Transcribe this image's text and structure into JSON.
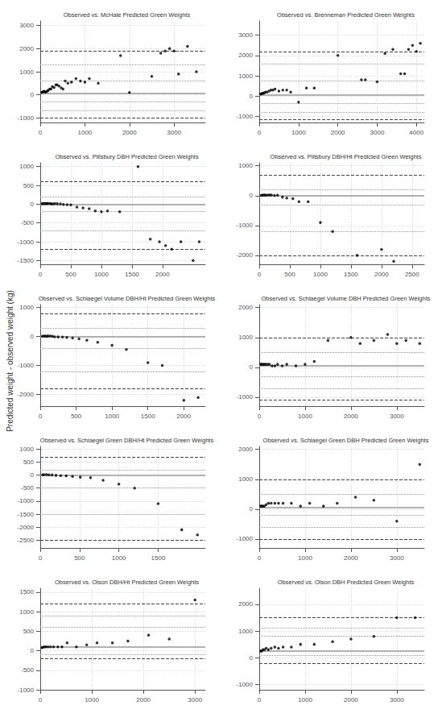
{
  "chart_data": [
    {
      "type": "scatter",
      "title": "Observed vs. McHale Predicted Green Weights",
      "color": "#000000",
      "grid": true,
      "xlim": [
        0,
        3700
      ],
      "ylim": [
        -1200,
        3200
      ],
      "xticks": [
        0,
        1000,
        2000,
        3000
      ],
      "yticks": [
        -1000,
        0,
        1000,
        2000,
        3000
      ],
      "mean_line": 50,
      "upper_dash": 1900,
      "lower_dash": -1000,
      "hlines_dot": [
        600,
        1300,
        -300,
        -700
      ],
      "x": [
        30,
        50,
        70,
        90,
        110,
        130,
        160,
        180,
        210,
        240,
        270,
        310,
        350,
        380,
        420,
        470,
        510,
        560,
        620,
        700,
        800,
        900,
        1000,
        1100,
        1300,
        1800,
        2000,
        2500,
        2700,
        2800,
        2900,
        3000,
        3100,
        3300,
        3500
      ],
      "values": [
        100,
        120,
        140,
        150,
        120,
        130,
        160,
        200,
        250,
        250,
        350,
        320,
        430,
        430,
        380,
        300,
        250,
        600,
        500,
        550,
        700,
        600,
        550,
        700,
        500,
        1700,
        100,
        800,
        1800,
        1900,
        2000,
        1900,
        900,
        2100,
        1000
      ]
    },
    {
      "type": "scatter",
      "title": "Observed vs. Brenneman Predicted Green Weights",
      "color": "#000000",
      "grid": true,
      "xlim": [
        0,
        4200
      ],
      "ylim": [
        -1300,
        3700
      ],
      "xticks": [
        0,
        1000,
        2000,
        3000,
        4000
      ],
      "yticks": [
        -1000,
        0,
        1000,
        2000,
        3000
      ],
      "mean_line": 50,
      "upper_dash": 2200,
      "lower_dash": -1150,
      "hlines_dot": [
        750,
        1600,
        -350,
        -800
      ],
      "x": [
        30,
        60,
        80,
        100,
        130,
        160,
        200,
        250,
        300,
        350,
        400,
        500,
        600,
        700,
        800,
        1000,
        1200,
        1400,
        2000,
        2600,
        2700,
        3000,
        3200,
        3400,
        3600,
        3700,
        3800,
        3900,
        4000,
        4100
      ],
      "values": [
        100,
        120,
        130,
        150,
        160,
        200,
        200,
        250,
        300,
        300,
        350,
        250,
        300,
        300,
        200,
        -300,
        400,
        400,
        2000,
        800,
        800,
        700,
        2100,
        2300,
        1100,
        1100,
        2300,
        2500,
        2200,
        2600
      ]
    },
    {
      "type": "scatter",
      "title": "Observed vs. Pillsbury DBH Predicted Green Weights",
      "color": "#000000",
      "grid": true,
      "xlim": [
        0,
        2700
      ],
      "ylim": [
        -1600,
        1100
      ],
      "xticks": [
        0,
        500,
        1000,
        1500,
        2000
      ],
      "yticks": [
        -1500,
        -1000,
        -500,
        0,
        500,
        1000
      ],
      "mean_line": 0,
      "upper_dash": 600,
      "lower_dash": -1200,
      "hlines_dot": [
        200,
        -200,
        -700
      ],
      "x": [
        30,
        50,
        70,
        90,
        110,
        130,
        160,
        180,
        210,
        240,
        280,
        330,
        380,
        440,
        500,
        600,
        700,
        800,
        900,
        1000,
        1100,
        1300,
        1600,
        1800,
        1950,
        2050,
        2150,
        2300,
        2500,
        2600
      ],
      "values": [
        10,
        20,
        15,
        20,
        15,
        20,
        20,
        10,
        5,
        20,
        10,
        5,
        -10,
        -15,
        -20,
        -80,
        -100,
        -120,
        -180,
        -200,
        -180,
        -200,
        1000,
        -930,
        -1000,
        -1100,
        -1200,
        -1000,
        -1500,
        -1000
      ]
    },
    {
      "type": "scatter",
      "title": "Observed vs. Pillsbury DBH/Ht Predicted Green Weights",
      "color": "#000000",
      "grid": true,
      "xlim": [
        0,
        2700
      ],
      "ylim": [
        -2300,
        1100
      ],
      "xticks": [
        0,
        500,
        1000,
        1500,
        2000,
        2500
      ],
      "yticks": [
        -2000,
        -1000,
        0,
        1000
      ],
      "mean_line": 0,
      "upper_dash": 700,
      "lower_dash": -2000,
      "hlines_dot": [
        200,
        -300,
        -1200
      ],
      "x": [
        30,
        50,
        70,
        90,
        110,
        140,
        170,
        200,
        250,
        300,
        380,
        450,
        550,
        650,
        800,
        1000,
        1200,
        1600,
        2000,
        2200
      ],
      "values": [
        10,
        15,
        20,
        20,
        15,
        20,
        20,
        20,
        10,
        15,
        -50,
        -80,
        -100,
        -200,
        -200,
        -900,
        -1200,
        -2000,
        -1800,
        -2200
      ]
    },
    {
      "type": "scatter",
      "title": "Observed vs. Schlaegel Volume DBH/Ht Predicted Green Weights",
      "color": "#000000",
      "grid": true,
      "xlim": [
        0,
        2300
      ],
      "ylim": [
        -2400,
        1100
      ],
      "xticks": [
        0,
        500,
        1000,
        1500,
        2000
      ],
      "yticks": [
        -2000,
        -1000,
        0,
        1000
      ],
      "mean_line": 0,
      "upper_dash": 800,
      "lower_dash": -1800,
      "hlines_dot": [
        300,
        -400,
        -1200
      ],
      "x": [
        30,
        50,
        70,
        90,
        110,
        140,
        170,
        200,
        250,
        310,
        370,
        450,
        540,
        650,
        800,
        1000,
        1200,
        1500,
        1700,
        2000,
        2200
      ],
      "values": [
        10,
        15,
        15,
        10,
        20,
        15,
        10,
        -10,
        -15,
        -20,
        -30,
        -50,
        -80,
        -130,
        -200,
        -300,
        -450,
        -900,
        -1000,
        -2200,
        -2100
      ]
    },
    {
      "type": "scatter",
      "title": "Observed vs. Schlaegel Volume DBH Predicted Green Weights",
      "color": "#000000",
      "grid": true,
      "xlim": [
        0,
        3600
      ],
      "ylim": [
        -1300,
        2100
      ],
      "xticks": [
        0,
        1000,
        2000,
        3000
      ],
      "yticks": [
        -1000,
        0,
        1000,
        2000
      ],
      "mean_line": 50,
      "upper_dash": 1000,
      "lower_dash": -1100,
      "hlines_dot": [
        500,
        -300,
        -700
      ],
      "x": [
        30,
        50,
        80,
        110,
        140,
        180,
        220,
        280,
        340,
        400,
        500,
        600,
        800,
        1000,
        1200,
        1500,
        2000,
        2200,
        2500,
        2800,
        3000,
        3200,
        3500
      ],
      "values": [
        100,
        100,
        100,
        100,
        100,
        100,
        100,
        50,
        50,
        100,
        50,
        100,
        50,
        100,
        200,
        900,
        1000,
        800,
        900,
        1100,
        800,
        900,
        800
      ]
    },
    {
      "type": "scatter",
      "title": "Observed vs. Schlaegel Green DBH/Ht Predicted Green Weights",
      "color": "#000000",
      "grid": true,
      "xlim": [
        0,
        2100
      ],
      "ylim": [
        -2800,
        1100
      ],
      "xticks": [
        0,
        500,
        1000,
        1500
      ],
      "yticks": [
        -2500,
        -2000,
        -1500,
        -1000,
        -500,
        0,
        500,
        1000
      ],
      "mean_line": 0,
      "upper_dash": 700,
      "lower_dash": -2500,
      "hlines_dot": [
        200,
        -500,
        -1500
      ],
      "x": [
        30,
        50,
        80,
        110,
        150,
        200,
        260,
        330,
        410,
        510,
        640,
        800,
        1000,
        1200,
        1500,
        1800,
        2000
      ],
      "values": [
        10,
        15,
        20,
        10,
        5,
        -10,
        -20,
        -30,
        -50,
        -80,
        -100,
        -200,
        -350,
        -500,
        -1100,
        -2100,
        -2300
      ]
    },
    {
      "type": "scatter",
      "title": "Observed vs. Schlaegel Green DBH Predicted Green Weights",
      "color": "#000000",
      "grid": true,
      "xlim": [
        0,
        3600
      ],
      "ylim": [
        -1300,
        2100
      ],
      "xticks": [
        0,
        1000,
        2000,
        3000
      ],
      "yticks": [
        -1000,
        0,
        1000,
        2000
      ],
      "mean_line": 50,
      "upper_dash": 1000,
      "lower_dash": -1000,
      "hlines_dot": [
        500,
        -200,
        -600
      ],
      "x": [
        30,
        50,
        80,
        110,
        150,
        200,
        260,
        340,
        420,
        520,
        700,
        900,
        1100,
        1400,
        1700,
        2100,
        2500,
        3000,
        3500
      ],
      "values": [
        100,
        100,
        100,
        100,
        150,
        200,
        200,
        200,
        200,
        200,
        200,
        100,
        200,
        100,
        200,
        400,
        300,
        -400,
        1500
      ]
    },
    {
      "type": "scatter",
      "title": "Observed vs. Olson DBH/Ht Predicted Green Weights",
      "color": "#000000",
      "grid": true,
      "xlim": [
        0,
        3200
      ],
      "ylim": [
        -1000,
        1600
      ],
      "xticks": [
        0,
        1000,
        2000,
        3000
      ],
      "yticks": [
        -1000,
        -500,
        0,
        500,
        1000,
        1500
      ],
      "mean_line": 100,
      "upper_dash": 1200,
      "lower_dash": -200,
      "hlines_dot": [
        600,
        -100,
        900
      ],
      "x": [
        30,
        50,
        80,
        110,
        150,
        200,
        260,
        340,
        420,
        520,
        700,
        900,
        1100,
        1400,
        1700,
        2100,
        2500,
        3000
      ],
      "values": [
        80,
        90,
        100,
        100,
        100,
        100,
        100,
        100,
        100,
        200,
        100,
        150,
        200,
        200,
        250,
        400,
        300,
        1300
      ]
    },
    {
      "type": "scatter",
      "title": "Observed vs. Olson DBH Predicted Green Weights",
      "color": "#000000",
      "grid": true,
      "xlim": [
        0,
        3600
      ],
      "ylim": [
        -1200,
        2600
      ],
      "xticks": [
        0,
        1000,
        2000,
        3000
      ],
      "yticks": [
        -1000,
        0,
        1000,
        2000
      ],
      "mean_line": 250,
      "upper_dash": 1500,
      "lower_dash": -200,
      "hlines_dot": [
        800,
        100,
        1100
      ],
      "x": [
        30,
        50,
        80,
        110,
        150,
        200,
        260,
        340,
        420,
        520,
        700,
        900,
        1200,
        1600,
        2000,
        2500,
        3000,
        3400
      ],
      "values": [
        250,
        250,
        300,
        300,
        350,
        300,
        350,
        400,
        350,
        400,
        400,
        500,
        500,
        600,
        700,
        800,
        1500,
        1500
      ]
    }
  ],
  "ylabel": "Predicted weight - observed weight (kg)"
}
